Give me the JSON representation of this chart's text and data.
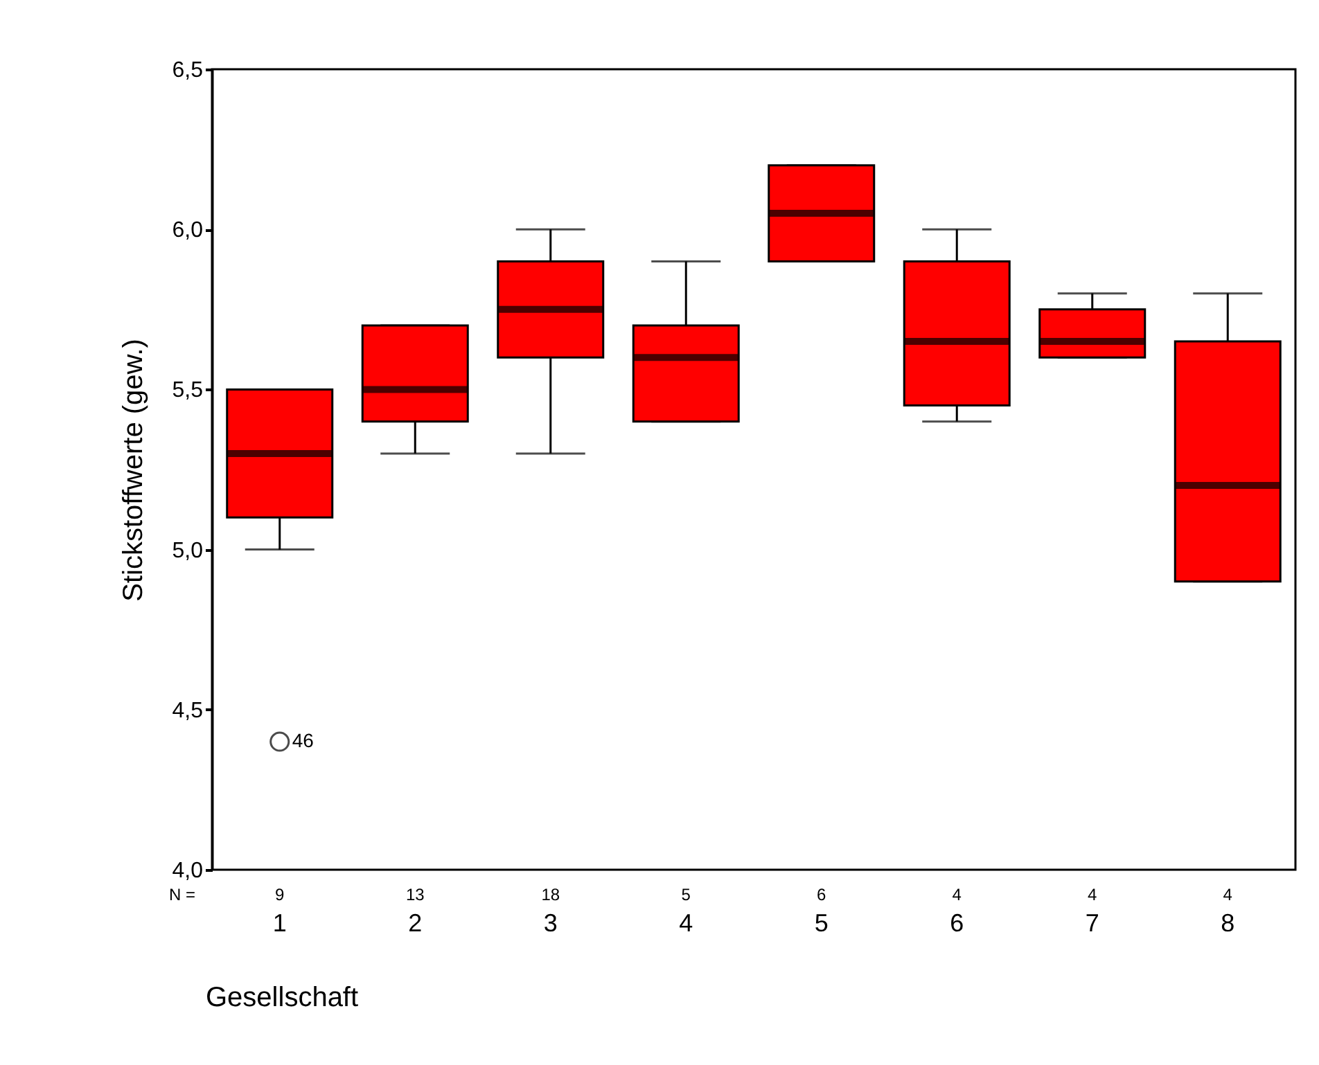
{
  "chart_data": {
    "type": "box",
    "xlabel": "Gesellschaft",
    "ylabel": "Stickstoffwerte (gew.)",
    "color": "#ff0000",
    "categories": [
      "1",
      "2",
      "3",
      "4",
      "5",
      "6",
      "7",
      "8"
    ],
    "boxes": [
      {
        "low": 5.0,
        "q1": 5.1,
        "median": 5.3,
        "q3": 5.5,
        "high": 5.5,
        "outliers": [
          4.4
        ]
      },
      {
        "low": 5.3,
        "q1": 5.4,
        "median": 5.5,
        "q3": 5.7,
        "high": 5.7
      },
      {
        "low": 5.3,
        "q1": 5.6,
        "median": 5.75,
        "q3": 5.9,
        "high": 6.0
      },
      {
        "low": 5.4,
        "q1": 5.4,
        "median": 5.6,
        "q3": 5.7,
        "high": 5.9
      },
      {
        "low": 5.9,
        "q1": 5.9,
        "median": 6.05,
        "q3": 6.2,
        "high": 6.2
      },
      {
        "low": 5.4,
        "q1": 5.45,
        "median": 5.65,
        "q3": 5.9,
        "high": 6.0
      },
      {
        "low": 5.6,
        "q1": 5.6,
        "median": 5.65,
        "q3": 5.75,
        "high": 5.8
      },
      {
        "low": 4.9,
        "q1": 4.9,
        "median": 5.2,
        "q3": 5.65,
        "high": 5.8
      }
    ],
    "ylim": [
      4.0,
      6.5
    ],
    "yticks": [
      {
        "value": 4.0,
        "label": "4,0"
      },
      {
        "value": 4.5,
        "label": "4,5"
      },
      {
        "value": 5.0,
        "label": "5,0"
      },
      {
        "value": 5.5,
        "label": "5,5"
      },
      {
        "value": 6.0,
        "label": "6,0"
      },
      {
        "value": 6.5,
        "label": "6,5"
      }
    ],
    "grid": false,
    "annotations": [
      "N =",
      "9",
      "13",
      "18",
      "5",
      "6",
      "4",
      "4",
      "4",
      "46"
    ]
  }
}
